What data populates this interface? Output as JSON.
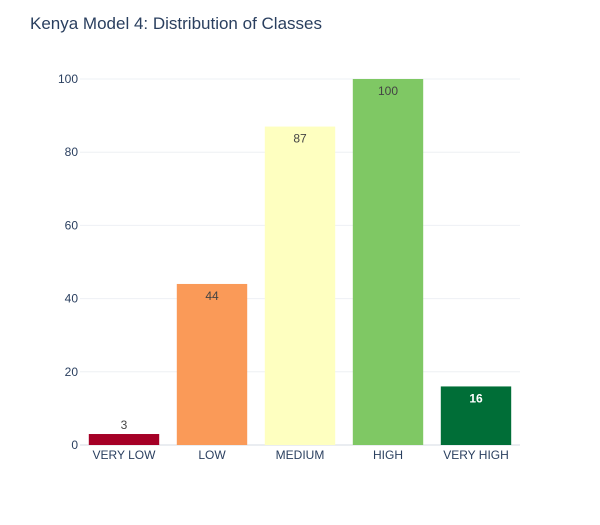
{
  "chart_data": {
    "type": "bar",
    "title": "Kenya Model 4: Distribution of Classes",
    "categories": [
      "VERY LOW",
      "LOW",
      "MEDIUM",
      "HIGH",
      "VERY HIGH"
    ],
    "values": [
      3,
      44,
      87,
      100,
      16
    ],
    "value_labels": [
      "3",
      "44",
      "87",
      "100",
      "16"
    ],
    "colors": [
      "#a50026",
      "#fa9a58",
      "#feffc0",
      "#7fc864",
      "#006e37"
    ],
    "label_position": [
      "outside",
      "inside",
      "inside",
      "inside",
      "inside"
    ],
    "y_ticks": [
      "0",
      "20",
      "40",
      "60",
      "80",
      "100"
    ],
    "ylim": [
      0,
      100
    ],
    "xlabel": "",
    "ylabel": "",
    "grid": true,
    "legend": "none"
  }
}
